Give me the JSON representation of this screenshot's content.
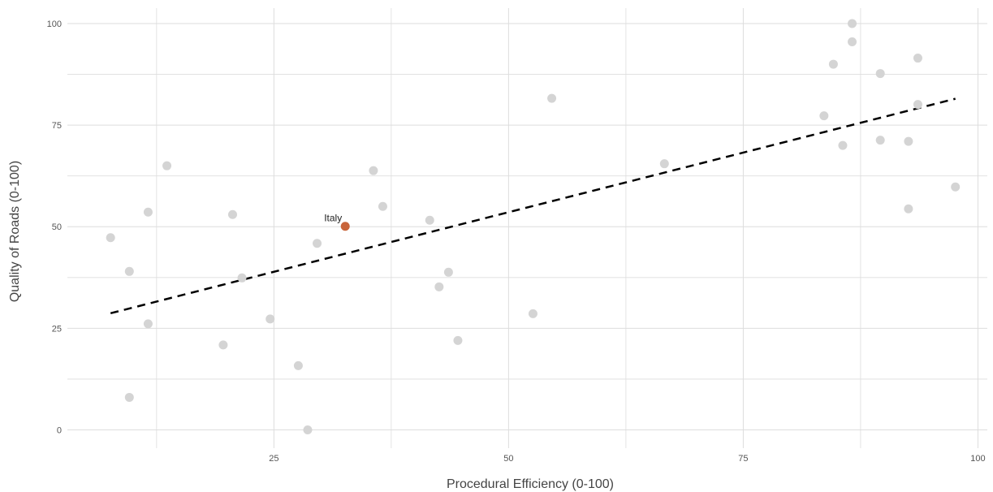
{
  "chart_data": {
    "type": "scatter",
    "title": "",
    "xlabel": "Procedural Efficiency (0-100)",
    "ylabel": "Quality of Roads (0-100)",
    "xlim": [
      3,
      101
    ],
    "ylim": [
      -4.5,
      103.8
    ],
    "grid": true,
    "x_ticks": [
      25,
      50,
      75,
      100
    ],
    "y_ticks": [
      0,
      25,
      50,
      75,
      100
    ],
    "colors": {
      "point": "#d4d4d4",
      "highlight": "#c8643a",
      "trend": "#000000",
      "grid": "#dddddd"
    },
    "points": [
      {
        "x": 7.6,
        "y": 47.3
      },
      {
        "x": 9.6,
        "y": 39.0
      },
      {
        "x": 9.6,
        "y": 8.0
      },
      {
        "x": 11.6,
        "y": 53.6
      },
      {
        "x": 11.6,
        "y": 26.1
      },
      {
        "x": 13.6,
        "y": 65.0
      },
      {
        "x": 19.6,
        "y": 20.9
      },
      {
        "x": 20.6,
        "y": 53.0
      },
      {
        "x": 21.6,
        "y": 37.4
      },
      {
        "x": 24.6,
        "y": 27.3
      },
      {
        "x": 27.6,
        "y": 15.8
      },
      {
        "x": 28.6,
        "y": 0.0
      },
      {
        "x": 29.6,
        "y": 45.9
      },
      {
        "x": 35.6,
        "y": 63.8
      },
      {
        "x": 36.6,
        "y": 55.0
      },
      {
        "x": 41.6,
        "y": 51.6
      },
      {
        "x": 42.6,
        "y": 35.2
      },
      {
        "x": 43.6,
        "y": 38.8
      },
      {
        "x": 44.6,
        "y": 22.0
      },
      {
        "x": 52.6,
        "y": 28.6
      },
      {
        "x": 54.6,
        "y": 81.6
      },
      {
        "x": 66.6,
        "y": 65.5
      },
      {
        "x": 83.6,
        "y": 77.3
      },
      {
        "x": 84.6,
        "y": 90.0
      },
      {
        "x": 85.6,
        "y": 70.0
      },
      {
        "x": 86.6,
        "y": 100.0
      },
      {
        "x": 86.6,
        "y": 95.5
      },
      {
        "x": 89.6,
        "y": 87.7
      },
      {
        "x": 89.6,
        "y": 71.3
      },
      {
        "x": 92.6,
        "y": 71.0
      },
      {
        "x": 92.6,
        "y": 54.4
      },
      {
        "x": 93.6,
        "y": 91.5
      },
      {
        "x": 93.6,
        "y": 80.1
      },
      {
        "x": 97.6,
        "y": 59.8
      }
    ],
    "highlight": {
      "x": 32.6,
      "y": 50.1,
      "label": "Italy"
    },
    "trend_line": {
      "x": [
        7.6,
        97.6
      ],
      "y": [
        28.7,
        81.5
      ],
      "style": "dashed"
    }
  }
}
